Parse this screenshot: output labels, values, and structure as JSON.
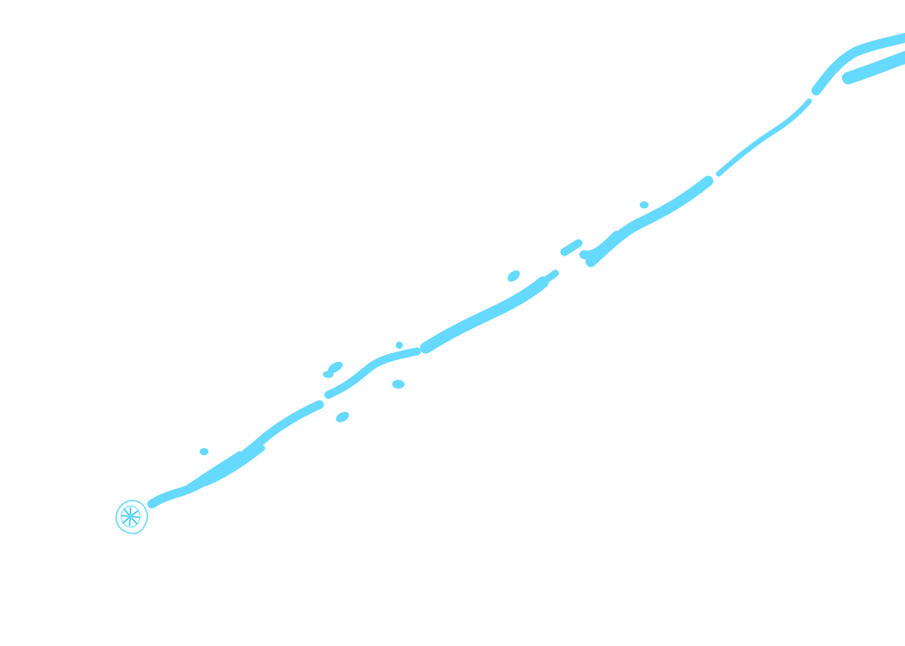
{
  "scene": {
    "background": "#ffffff",
    "accent_color": "#66d9ff",
    "accent_color_dark": "#2ec7ef",
    "elements": [
      "water-streak",
      "impact-splash-icon"
    ]
  }
}
